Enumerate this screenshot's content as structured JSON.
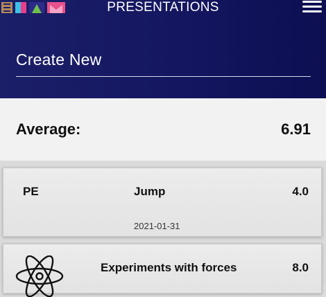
{
  "header": {
    "title": "PRESENTATIONS",
    "logo_letters": "ELAM",
    "logo_colors": [
      "#b5895a",
      "#e83e8c",
      "#3ec1e8",
      "#6ec14a",
      "#e8508c"
    ],
    "menu_icon": "hamburger-menu-icon"
  },
  "create_new": {
    "label": "Create New"
  },
  "average": {
    "label": "Average:",
    "value": "6.91"
  },
  "presentations": [
    {
      "subject": "PE",
      "title": "Jump",
      "score": "4.0",
      "date": "2021-01-31"
    },
    {
      "subject_icon": "atom-icon",
      "title": "Experiments with forces",
      "score": "8.0"
    }
  ],
  "colors": {
    "header_bg": "#141660",
    "average_bg": "#f2f2f2",
    "card_bg": "#e8e8e8"
  }
}
